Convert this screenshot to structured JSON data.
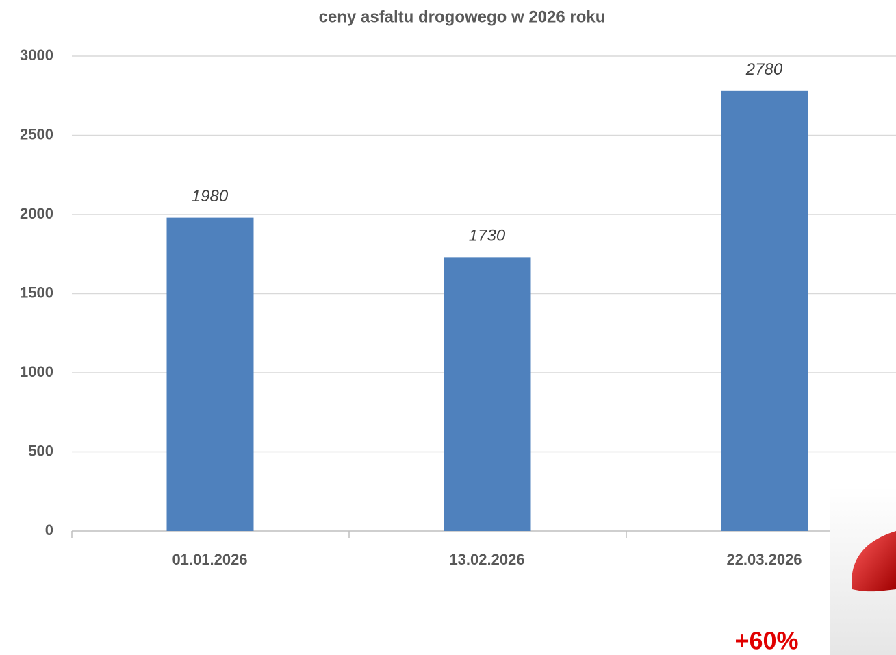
{
  "chart_data": {
    "type": "bar",
    "title": "ceny asfaltu drogowego w 2026 roku",
    "categories": [
      "01.01.2026",
      "13.02.2026",
      "22.03.2026"
    ],
    "values": [
      1980,
      1730,
      2780
    ],
    "color": "#4f81bd",
    "ylim": [
      0,
      3000
    ],
    "yticks": [
      0,
      500,
      1000,
      1500,
      2000,
      2500,
      3000
    ],
    "grid": true,
    "annotation": "+60%"
  }
}
